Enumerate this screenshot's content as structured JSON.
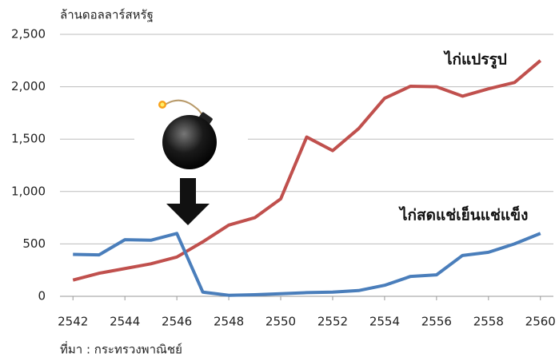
{
  "chart_data": {
    "type": "line",
    "y_label": "ล้านดอลลาร์สหรัฐ",
    "source": "ที่มา : กระทรวงพาณิชย์",
    "x": [
      2542,
      2543,
      2544,
      2545,
      2546,
      2547,
      2548,
      2549,
      2550,
      2551,
      2552,
      2553,
      2554,
      2555,
      2556,
      2557,
      2558,
      2559,
      2560
    ],
    "series": [
      {
        "name": "ไก่แปรรูป",
        "color": "#c0504d",
        "values": [
          155,
          220,
          265,
          310,
          375,
          520,
          680,
          750,
          930,
          1520,
          1390,
          1600,
          1890,
          2005,
          2000,
          1910,
          1980,
          2040,
          2250
        ]
      },
      {
        "name": "ไก่สดแช่เย็นแช่แข็ง",
        "color": "#4a7ebb",
        "values": [
          400,
          395,
          540,
          535,
          600,
          40,
          10,
          15,
          25,
          35,
          40,
          55,
          105,
          190,
          205,
          390,
          420,
          500,
          600
        ]
      }
    ],
    "xlim": [
      2541.5,
      2560.5
    ],
    "xticks": [
      2542,
      2544,
      2546,
      2548,
      2550,
      2552,
      2554,
      2556,
      2558,
      2560
    ],
    "ylim": [
      0,
      2500
    ],
    "yticks": [
      0,
      500,
      {
        "value": 1000,
        "label": "1,000"
      },
      {
        "value": 1500,
        "label": "1,500"
      },
      {
        "value": 2000,
        "label": "2,000"
      },
      {
        "value": 2500,
        "label": "2,500"
      }
    ],
    "grid": true
  }
}
